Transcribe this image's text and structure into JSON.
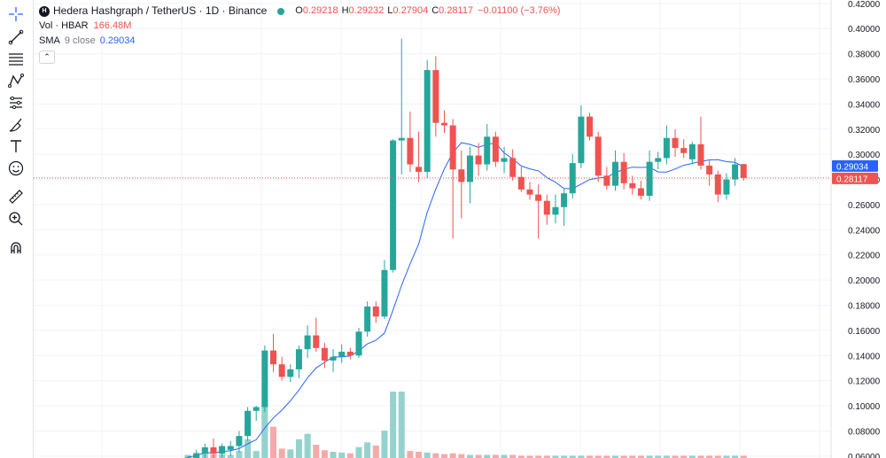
{
  "symbol": {
    "logo_text": "H",
    "title": "Hedera Hashgraph / TetherUS · 1D · Binance",
    "open_label": "O",
    "open": "0.29218",
    "high_label": "H",
    "high": "0.29232",
    "low_label": "L",
    "low": "0.27904",
    "close_label": "C",
    "close": "0.28117",
    "change": "−0.01100 (−3.76%)"
  },
  "volume": {
    "label": "Vol · HBAR",
    "value": "166.48M"
  },
  "sma": {
    "label": "SMA",
    "params": "9 close",
    "value": "0.29034"
  },
  "toolbar": {
    "tools": [
      "crosshair-icon",
      "trend-line-icon",
      "fib-lines-icon",
      "pattern-icon",
      "forecast-icon",
      "brush-icon",
      "text-icon",
      "emoji-icon",
      "ruler-icon",
      "zoom-in-icon",
      "magnet-icon"
    ]
  },
  "colors": {
    "up": "#26a69a",
    "down": "#ef5350",
    "sma": "#2962ff",
    "vol_up": "#94d3cd",
    "vol_down": "#f6a9a8"
  },
  "chart_data": {
    "type": "candlestick",
    "y_axis_ticks": [
      "0.06000",
      "0.08000",
      "0.10000",
      "0.12000",
      "0.14000",
      "0.16000",
      "0.18000",
      "0.20000",
      "0.22000",
      "0.24000",
      "0.26000",
      "0.28000",
      "0.30000",
      "0.32000",
      "0.34000",
      "0.36000",
      "0.38000",
      "0.40000",
      "0.42000"
    ],
    "ylim": [
      0.0585,
      0.4227
    ],
    "last_close": 0.28117,
    "last_close_label": "0.28117",
    "sma_last": 0.29034,
    "sma_last_label": "0.29034",
    "candles": [
      {
        "o": 0.055,
        "h": 0.06,
        "l": 0.054,
        "c": 0.059
      },
      {
        "o": 0.0585,
        "h": 0.065,
        "l": 0.057,
        "c": 0.062
      },
      {
        "o": 0.062,
        "h": 0.07,
        "l": 0.058,
        "c": 0.067
      },
      {
        "o": 0.067,
        "h": 0.074,
        "l": 0.058,
        "c": 0.062
      },
      {
        "o": 0.062,
        "h": 0.07,
        "l": 0.059,
        "c": 0.068
      },
      {
        "o": 0.065,
        "h": 0.072,
        "l": 0.06,
        "c": 0.068
      },
      {
        "o": 0.068,
        "h": 0.08,
        "l": 0.063,
        "c": 0.076
      },
      {
        "o": 0.076,
        "h": 0.099,
        "l": 0.072,
        "c": 0.096
      },
      {
        "o": 0.096,
        "h": 0.1,
        "l": 0.088,
        "c": 0.099
      },
      {
        "o": 0.099,
        "h": 0.148,
        "l": 0.095,
        "c": 0.144
      },
      {
        "o": 0.144,
        "h": 0.157,
        "l": 0.127,
        "c": 0.133
      },
      {
        "o": 0.133,
        "h": 0.139,
        "l": 0.12,
        "c": 0.123
      },
      {
        "o": 0.123,
        "h": 0.133,
        "l": 0.119,
        "c": 0.129
      },
      {
        "o": 0.129,
        "h": 0.148,
        "l": 0.122,
        "c": 0.145
      },
      {
        "o": 0.145,
        "h": 0.164,
        "l": 0.138,
        "c": 0.156
      },
      {
        "o": 0.156,
        "h": 0.17,
        "l": 0.143,
        "c": 0.146
      },
      {
        "o": 0.146,
        "h": 0.15,
        "l": 0.13,
        "c": 0.136
      },
      {
        "o": 0.136,
        "h": 0.145,
        "l": 0.127,
        "c": 0.139
      },
      {
        "o": 0.139,
        "h": 0.149,
        "l": 0.134,
        "c": 0.143
      },
      {
        "o": 0.143,
        "h": 0.146,
        "l": 0.137,
        "c": 0.14
      },
      {
        "o": 0.14,
        "h": 0.162,
        "l": 0.138,
        "c": 0.159
      },
      {
        "o": 0.159,
        "h": 0.183,
        "l": 0.155,
        "c": 0.179
      },
      {
        "o": 0.179,
        "h": 0.183,
        "l": 0.166,
        "c": 0.171
      },
      {
        "o": 0.171,
        "h": 0.216,
        "l": 0.169,
        "c": 0.208
      },
      {
        "o": 0.208,
        "h": 0.312,
        "l": 0.206,
        "c": 0.311
      },
      {
        "o": 0.311,
        "h": 0.392,
        "l": 0.284,
        "c": 0.313
      },
      {
        "o": 0.313,
        "h": 0.334,
        "l": 0.286,
        "c": 0.292
      },
      {
        "o": 0.29,
        "h": 0.318,
        "l": 0.278,
        "c": 0.286
      },
      {
        "o": 0.286,
        "h": 0.375,
        "l": 0.281,
        "c": 0.367
      },
      {
        "o": 0.367,
        "h": 0.378,
        "l": 0.314,
        "c": 0.325
      },
      {
        "o": 0.325,
        "h": 0.335,
        "l": 0.317,
        "c": 0.323
      },
      {
        "o": 0.323,
        "h": 0.328,
        "l": 0.233,
        "c": 0.288
      },
      {
        "o": 0.288,
        "h": 0.303,
        "l": 0.249,
        "c": 0.278
      },
      {
        "o": 0.278,
        "h": 0.306,
        "l": 0.261,
        "c": 0.299
      },
      {
        "o": 0.299,
        "h": 0.309,
        "l": 0.283,
        "c": 0.292
      },
      {
        "o": 0.292,
        "h": 0.324,
        "l": 0.287,
        "c": 0.314
      },
      {
        "o": 0.314,
        "h": 0.318,
        "l": 0.29,
        "c": 0.294
      },
      {
        "o": 0.294,
        "h": 0.306,
        "l": 0.285,
        "c": 0.297
      },
      {
        "o": 0.297,
        "h": 0.304,
        "l": 0.279,
        "c": 0.282
      },
      {
        "o": 0.282,
        "h": 0.29,
        "l": 0.27,
        "c": 0.272
      },
      {
        "o": 0.272,
        "h": 0.278,
        "l": 0.264,
        "c": 0.268
      },
      {
        "o": 0.268,
        "h": 0.276,
        "l": 0.233,
        "c": 0.263
      },
      {
        "o": 0.263,
        "h": 0.268,
        "l": 0.244,
        "c": 0.252
      },
      {
        "o": 0.252,
        "h": 0.268,
        "l": 0.245,
        "c": 0.258
      },
      {
        "o": 0.258,
        "h": 0.273,
        "l": 0.243,
        "c": 0.269
      },
      {
        "o": 0.269,
        "h": 0.3,
        "l": 0.265,
        "c": 0.293
      },
      {
        "o": 0.293,
        "h": 0.339,
        "l": 0.289,
        "c": 0.33
      },
      {
        "o": 0.33,
        "h": 0.333,
        "l": 0.311,
        "c": 0.314
      },
      {
        "o": 0.314,
        "h": 0.318,
        "l": 0.278,
        "c": 0.283
      },
      {
        "o": 0.283,
        "h": 0.29,
        "l": 0.272,
        "c": 0.275
      },
      {
        "o": 0.275,
        "h": 0.303,
        "l": 0.271,
        "c": 0.294
      },
      {
        "o": 0.294,
        "h": 0.301,
        "l": 0.272,
        "c": 0.277
      },
      {
        "o": 0.277,
        "h": 0.283,
        "l": 0.268,
        "c": 0.273
      },
      {
        "o": 0.273,
        "h": 0.279,
        "l": 0.264,
        "c": 0.267
      },
      {
        "o": 0.267,
        "h": 0.303,
        "l": 0.263,
        "c": 0.294
      },
      {
        "o": 0.294,
        "h": 0.302,
        "l": 0.288,
        "c": 0.297
      },
      {
        "o": 0.297,
        "h": 0.323,
        "l": 0.292,
        "c": 0.313
      },
      {
        "o": 0.313,
        "h": 0.32,
        "l": 0.298,
        "c": 0.305
      },
      {
        "o": 0.305,
        "h": 0.312,
        "l": 0.297,
        "c": 0.301
      },
      {
        "o": 0.296,
        "h": 0.31,
        "l": 0.292,
        "c": 0.308
      },
      {
        "o": 0.308,
        "h": 0.33,
        "l": 0.288,
        "c": 0.291
      },
      {
        "o": 0.291,
        "h": 0.295,
        "l": 0.275,
        "c": 0.284
      },
      {
        "o": 0.284,
        "h": 0.287,
        "l": 0.262,
        "c": 0.268
      },
      {
        "o": 0.268,
        "h": 0.285,
        "l": 0.264,
        "c": 0.28
      },
      {
        "o": 0.28,
        "h": 0.297,
        "l": 0.275,
        "c": 0.292
      },
      {
        "o": 0.2922,
        "h": 0.2923,
        "l": 0.279,
        "c": 0.2812
      }
    ],
    "volumes": [
      {
        "v": 0.4,
        "up": true
      },
      {
        "v": 0.7,
        "up": true
      },
      {
        "v": 0.6,
        "up": true
      },
      {
        "v": 0.5,
        "up": false
      },
      {
        "v": 0.5,
        "up": true
      },
      {
        "v": 0.4,
        "up": true
      },
      {
        "v": 0.9,
        "up": true
      },
      {
        "v": 2.4,
        "up": true
      },
      {
        "v": 0.9,
        "up": true
      },
      {
        "v": 7.5,
        "up": true
      },
      {
        "v": 4.0,
        "up": false
      },
      {
        "v": 1.2,
        "up": false
      },
      {
        "v": 1.1,
        "up": true
      },
      {
        "v": 2.4,
        "up": true
      },
      {
        "v": 3.1,
        "up": true
      },
      {
        "v": 1.7,
        "up": false
      },
      {
        "v": 1.0,
        "up": false
      },
      {
        "v": 0.8,
        "up": true
      },
      {
        "v": 0.7,
        "up": true
      },
      {
        "v": 0.6,
        "up": false
      },
      {
        "v": 1.4,
        "up": true
      },
      {
        "v": 2.0,
        "up": true
      },
      {
        "v": 1.6,
        "up": false
      },
      {
        "v": 3.5,
        "up": true
      },
      {
        "v": 8.5,
        "up": true
      },
      {
        "v": 8.5,
        "up": true
      },
      {
        "v": 0.9,
        "up": false
      },
      {
        "v": 0.8,
        "up": false
      },
      {
        "v": 0.7,
        "up": true
      },
      {
        "v": 0.6,
        "up": false
      },
      {
        "v": 0.5,
        "up": false
      },
      {
        "v": 0.6,
        "up": false
      },
      {
        "v": 0.5,
        "up": false
      },
      {
        "v": 0.4,
        "up": true
      },
      {
        "v": 0.4,
        "up": false
      },
      {
        "v": 0.4,
        "up": true
      },
      {
        "v": 0.4,
        "up": false
      },
      {
        "v": 0.4,
        "up": true
      },
      {
        "v": 0.4,
        "up": false
      },
      {
        "v": 0.3,
        "up": false
      },
      {
        "v": 0.3,
        "up": false
      },
      {
        "v": 0.3,
        "up": false
      },
      {
        "v": 0.3,
        "up": false
      },
      {
        "v": 0.3,
        "up": true
      },
      {
        "v": 0.3,
        "up": true
      },
      {
        "v": 0.3,
        "up": true
      },
      {
        "v": 0.3,
        "up": true
      },
      {
        "v": 0.3,
        "up": false
      },
      {
        "v": 0.3,
        "up": false
      },
      {
        "v": 0.3,
        "up": false
      },
      {
        "v": 0.3,
        "up": true
      },
      {
        "v": 0.3,
        "up": false
      },
      {
        "v": 0.3,
        "up": false
      },
      {
        "v": 0.3,
        "up": false
      },
      {
        "v": 0.3,
        "up": true
      },
      {
        "v": 0.3,
        "up": true
      },
      {
        "v": 0.3,
        "up": true
      },
      {
        "v": 0.3,
        "up": false
      },
      {
        "v": 0.3,
        "up": false
      },
      {
        "v": 0.3,
        "up": true
      },
      {
        "v": 0.3,
        "up": false
      },
      {
        "v": 0.3,
        "up": false
      },
      {
        "v": 0.3,
        "up": false
      },
      {
        "v": 0.3,
        "up": true
      },
      {
        "v": 0.3,
        "up": true
      },
      {
        "v": 0.3,
        "up": false
      }
    ]
  }
}
